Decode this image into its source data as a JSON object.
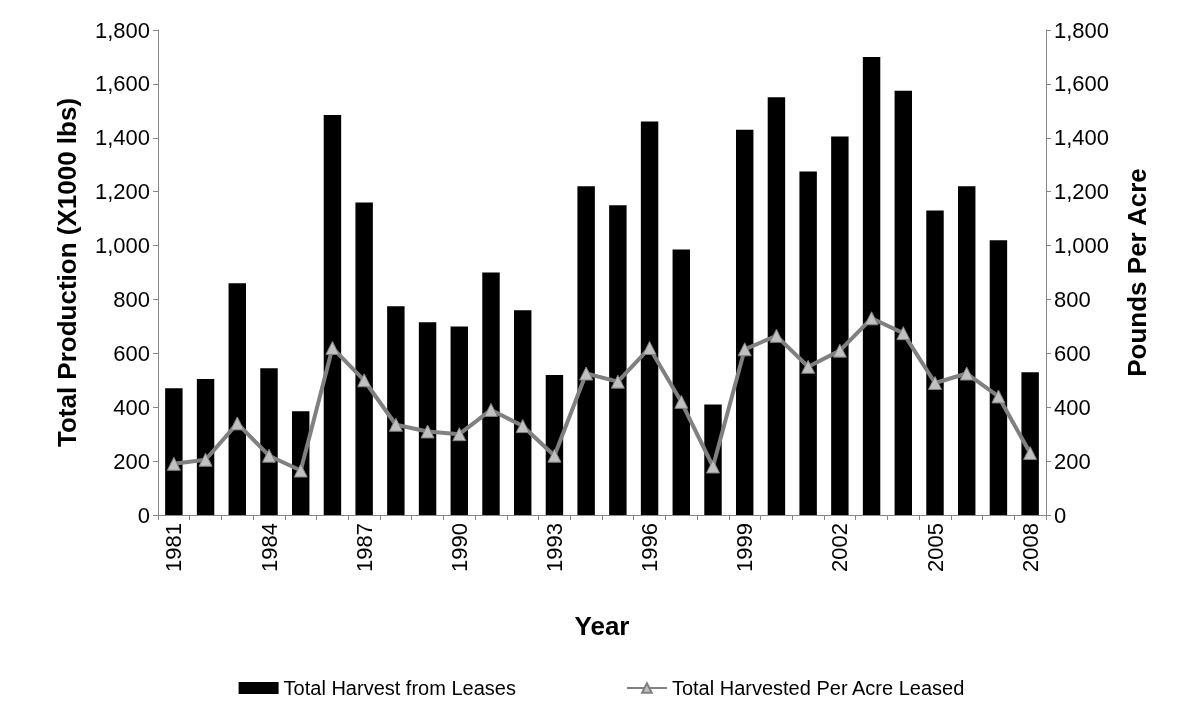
{
  "chart_data": {
    "type": "bar",
    "xlabel": "Year",
    "ylabel": "Total Production (X1000 lbs)",
    "y2label": "Pounds Per Acre",
    "categories": [
      "1981",
      null,
      null,
      "1984",
      null,
      null,
      "1987",
      null,
      null,
      "1990",
      null,
      null,
      "1993",
      null,
      null,
      "1996",
      null,
      null,
      "1999",
      null,
      null,
      "2002",
      null,
      null,
      "2005",
      null,
      null,
      "2008"
    ],
    "series": [
      {
        "name": "Total Harvest from Leases",
        "color": "#000000",
        "values": [
          470,
          505,
          860,
          545,
          385,
          1485,
          1160,
          775,
          715,
          700,
          900,
          760,
          520,
          1220,
          1150,
          1460,
          985,
          410,
          1430,
          1550,
          1275,
          1405,
          1700,
          1575,
          1130,
          1220,
          1020,
          530
        ]
      },
      {
        "name": "Total Harvested Per Acre Leased",
        "type": "line",
        "axis": "y2",
        "color": "#808080",
        "values": [
          190,
          205,
          340,
          220,
          165,
          620,
          500,
          335,
          310,
          300,
          390,
          330,
          220,
          525,
          495,
          620,
          420,
          180,
          615,
          665,
          550,
          610,
          730,
          675,
          490,
          525,
          440,
          230
        ]
      }
    ],
    "ylim": [
      0,
      1800
    ],
    "yticks": [
      0,
      200,
      400,
      600,
      800,
      {
        "value": 1000,
        "label": "1,000"
      },
      {
        "value": 1200,
        "label": "1,200"
      },
      {
        "value": 1400,
        "label": "1,400"
      },
      {
        "value": 1600,
        "label": "1,600"
      },
      {
        "value": 1800,
        "label": "1,800"
      }
    ],
    "y2lim": [
      0,
      1800
    ],
    "y2ticks": [
      0,
      200,
      400,
      600,
      800,
      {
        "value": 1000,
        "label": "1,000"
      },
      {
        "value": 1200,
        "label": "1,200"
      },
      {
        "value": 1400,
        "label": "1,400"
      },
      {
        "value": 1600,
        "label": "1,600"
      },
      {
        "value": 1800,
        "label": "1,800"
      }
    ],
    "grid": false,
    "legend": "bottom",
    "marker": "triangle",
    "line_style": "solid"
  }
}
